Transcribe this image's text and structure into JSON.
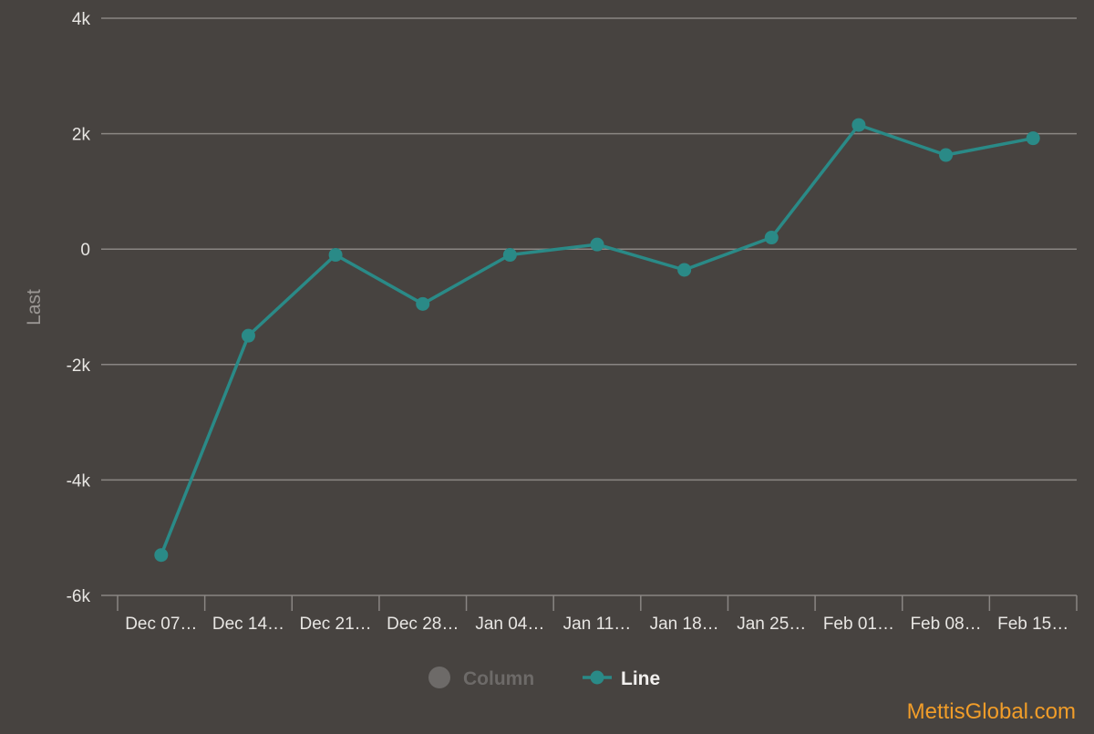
{
  "chart_data": {
    "type": "line",
    "ylabel": "Last",
    "ylim": [
      -6000,
      4000
    ],
    "yticks": [
      {
        "value": 4000,
        "label": "4k"
      },
      {
        "value": 2000,
        "label": "2k"
      },
      {
        "value": 0,
        "label": "0"
      },
      {
        "value": -2000,
        "label": "-2k"
      },
      {
        "value": -4000,
        "label": "-4k"
      },
      {
        "value": -6000,
        "label": "-6k"
      }
    ],
    "categories": [
      "Dec 07…",
      "Dec 14…",
      "Dec 21…",
      "Dec 28…",
      "Jan 04…",
      "Jan 11…",
      "Jan 18…",
      "Jan 25…",
      "Feb 01…",
      "Feb 08…",
      "Feb 15…"
    ],
    "series": [
      {
        "name": "Line",
        "type": "line",
        "color": "#2a8a87",
        "values": [
          -5300,
          -1500,
          -100,
          -950,
          -100,
          80,
          -360,
          200,
          2150,
          1630,
          1920
        ]
      }
    ],
    "legend": {
      "placement": "bottom-center",
      "items": [
        {
          "name": "Column",
          "marker": "circle",
          "color": "#6d6a68",
          "state": "hidden"
        },
        {
          "name": "Line",
          "marker": "line-circle",
          "color": "#2a8a87",
          "state": "visible"
        }
      ]
    },
    "grid": true
  },
  "watermark": "MettisGlobal.com"
}
